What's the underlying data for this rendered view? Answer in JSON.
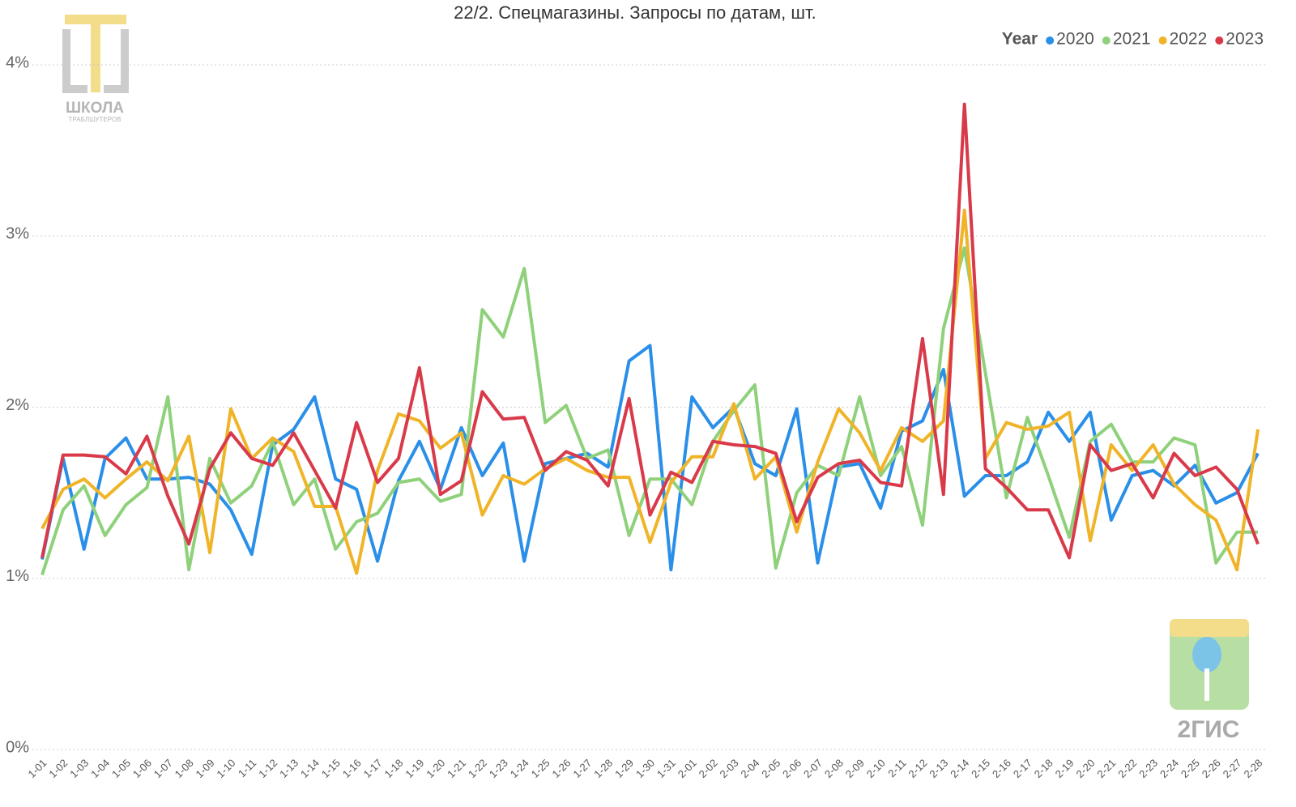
{
  "chart_data": {
    "type": "line",
    "title": "22/2. Спецмагазины. Запросы по датам, шт.",
    "legend_title": "Year",
    "legend": "top-right",
    "grid": true,
    "annotations": [
      "ШКОЛА",
      "ТРАБЛШУТЕРОВ",
      "2ГИС"
    ],
    "categories": [
      "1-01",
      "1-02",
      "1-03",
      "1-04",
      "1-05",
      "1-06",
      "1-07",
      "1-08",
      "1-09",
      "1-10",
      "1-11",
      "1-12",
      "1-13",
      "1-14",
      "1-15",
      "1-16",
      "1-17",
      "1-18",
      "1-19",
      "1-20",
      "1-21",
      "1-22",
      "1-23",
      "1-24",
      "1-25",
      "1-26",
      "1-27",
      "1-28",
      "1-29",
      "1-30",
      "1-31",
      "2-01",
      "2-02",
      "2-03",
      "2-04",
      "2-05",
      "2-06",
      "2-07",
      "2-08",
      "2-09",
      "2-10",
      "2-11",
      "2-12",
      "2-13",
      "2-14",
      "2-15",
      "2-16",
      "2-17",
      "2-18",
      "2-19",
      "2-20",
      "2-21",
      "2-22",
      "2-23",
      "2-24",
      "2-25",
      "2-26",
      "2-27",
      "2-28"
    ],
    "ylim": [
      0,
      4
    ],
    "yticks": [
      {
        "value": 0,
        "label": "0%"
      },
      {
        "value": 1,
        "label": "1%"
      },
      {
        "value": 2,
        "label": "2%"
      },
      {
        "value": 3,
        "label": "3%"
      },
      {
        "value": 4,
        "label": "4%"
      }
    ],
    "series": [
      {
        "name": "2020",
        "color": "#2a8fe8",
        "values": [
          1.11,
          1.7,
          1.17,
          1.7,
          1.82,
          1.58,
          1.58,
          1.59,
          1.55,
          1.4,
          1.14,
          1.78,
          1.87,
          2.06,
          1.58,
          1.52,
          1.1,
          1.57,
          1.8,
          1.52,
          1.88,
          1.6,
          1.79,
          1.1,
          1.67,
          1.7,
          1.73,
          1.65,
          2.27,
          2.36,
          1.05,
          2.06,
          1.88,
          2.0,
          1.67,
          1.6,
          1.99,
          1.09,
          1.65,
          1.67,
          1.41,
          1.86,
          1.92,
          2.22,
          1.48,
          1.6,
          1.6,
          1.68,
          1.97,
          1.8,
          1.97,
          1.34,
          1.6,
          1.63,
          1.54,
          1.66,
          1.44,
          1.5,
          1.73
        ]
      },
      {
        "name": "2021",
        "color": "#8fd17b",
        "values": [
          1.02,
          1.4,
          1.54,
          1.25,
          1.43,
          1.53,
          2.06,
          1.05,
          1.7,
          1.44,
          1.54,
          1.8,
          1.43,
          1.58,
          1.17,
          1.33,
          1.38,
          1.56,
          1.58,
          1.45,
          1.49,
          2.57,
          2.41,
          2.81,
          1.91,
          2.01,
          1.7,
          1.75,
          1.25,
          1.58,
          1.58,
          1.43,
          1.8,
          1.98,
          2.13,
          1.06,
          1.5,
          1.66,
          1.6,
          2.06,
          1.6,
          1.77,
          1.31,
          2.46,
          2.93,
          2.2,
          1.47,
          1.94,
          1.6,
          1.24,
          1.8,
          1.9,
          1.68,
          1.68,
          1.82,
          1.78,
          1.09,
          1.27,
          1.27
        ]
      },
      {
        "name": "2022",
        "color": "#f0b429",
        "values": [
          1.29,
          1.52,
          1.58,
          1.47,
          1.58,
          1.68,
          1.57,
          1.83,
          1.15,
          1.99,
          1.7,
          1.82,
          1.74,
          1.42,
          1.42,
          1.03,
          1.63,
          1.96,
          1.92,
          1.76,
          1.85,
          1.37,
          1.6,
          1.55,
          1.64,
          1.7,
          1.63,
          1.59,
          1.59,
          1.21,
          1.56,
          1.71,
          1.71,
          2.02,
          1.58,
          1.71,
          1.27,
          1.68,
          1.99,
          1.85,
          1.63,
          1.88,
          1.8,
          1.92,
          3.15,
          1.7,
          1.91,
          1.87,
          1.89,
          1.97,
          1.22,
          1.78,
          1.63,
          1.78,
          1.55,
          1.43,
          1.34,
          1.05,
          1.87
        ]
      },
      {
        "name": "2023",
        "color": "#d93a4a",
        "values": [
          1.12,
          1.72,
          1.72,
          1.71,
          1.61,
          1.83,
          1.48,
          1.2,
          1.64,
          1.85,
          1.7,
          1.66,
          1.85,
          1.63,
          1.41,
          1.91,
          1.56,
          1.7,
          2.23,
          1.49,
          1.57,
          2.09,
          1.93,
          1.94,
          1.63,
          1.74,
          1.69,
          1.54,
          2.05,
          1.37,
          1.62,
          1.56,
          1.8,
          1.78,
          1.77,
          1.73,
          1.33,
          1.59,
          1.67,
          1.69,
          1.56,
          1.54,
          2.4,
          1.49,
          3.77,
          1.64,
          1.53,
          1.4,
          1.4,
          1.12,
          1.78,
          1.63,
          1.67,
          1.47,
          1.73,
          1.6,
          1.65,
          1.52,
          1.2
        ]
      }
    ]
  }
}
